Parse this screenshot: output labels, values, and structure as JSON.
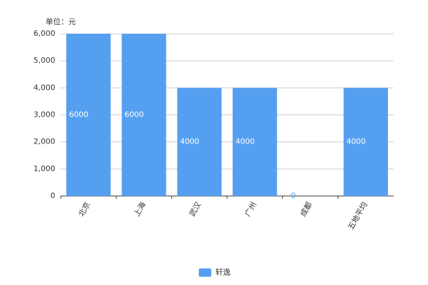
{
  "chart_data": {
    "type": "bar",
    "title": "单位：元",
    "categories": [
      "北京",
      "上海",
      "武汉",
      "广州",
      "成都",
      "五地平均"
    ],
    "series": [
      {
        "name": "轩逸",
        "color": "#559ff0",
        "values": [
          6000,
          6000,
          4000,
          4000,
          0,
          4000
        ]
      }
    ],
    "ylim": [
      0,
      6000
    ],
    "yticks": [
      0,
      {
        "value": 1000,
        "label": "1,000"
      },
      {
        "value": 2000,
        "label": "2,000"
      },
      {
        "value": 3000,
        "label": "3,000"
      },
      {
        "value": 4000,
        "label": "4,000"
      },
      {
        "value": 5000,
        "label": "5,000"
      },
      {
        "value": 6000,
        "label": "6,000"
      }
    ],
    "grid": true
  }
}
